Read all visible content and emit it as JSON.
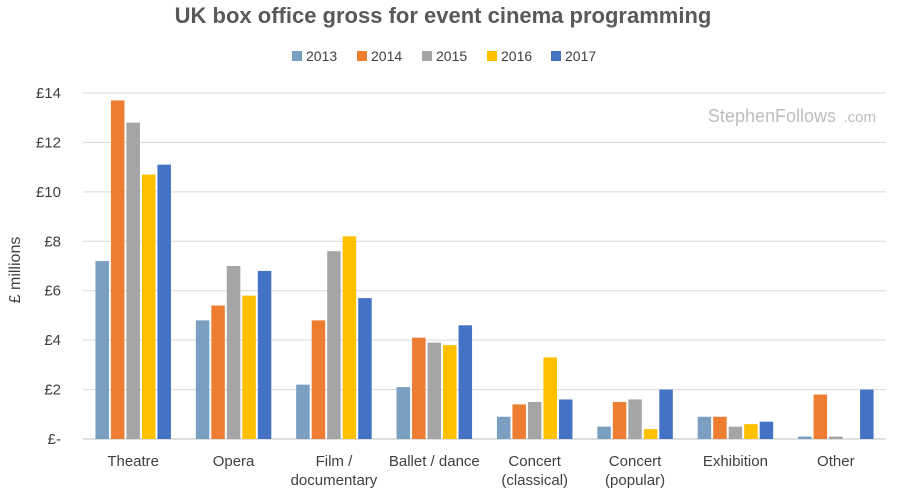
{
  "chart_data": {
    "type": "bar",
    "title": "UK box office gross for event cinema programming",
    "ylabel": "£ millions",
    "xlabel": "",
    "ylim": [
      0,
      14
    ],
    "yticks": [
      {
        "value": 0,
        "label": "£-"
      },
      {
        "value": 2,
        "label": "£2"
      },
      {
        "value": 4,
        "label": "£4"
      },
      {
        "value": 6,
        "label": "£6"
      },
      {
        "value": 8,
        "label": "£8"
      },
      {
        "value": 10,
        "label": "£10"
      },
      {
        "value": 12,
        "label": "£12"
      },
      {
        "value": 14,
        "label": "£14"
      }
    ],
    "grid": true,
    "legend_position": "top",
    "categories": [
      [
        "Theatre"
      ],
      [
        "Opera"
      ],
      [
        "Film /",
        "documentary"
      ],
      [
        "Ballet / dance"
      ],
      [
        "Concert",
        "(classical)"
      ],
      [
        "Concert",
        "(popular)"
      ],
      [
        "Exhibition"
      ],
      [
        "Other"
      ]
    ],
    "series": [
      {
        "name": "2013",
        "color": "#7a9fc1",
        "values": [
          7.2,
          4.8,
          2.2,
          2.1,
          0.9,
          0.5,
          0.9,
          0.1
        ]
      },
      {
        "name": "2014",
        "color": "#ed7d31",
        "values": [
          13.7,
          5.4,
          4.8,
          4.1,
          1.4,
          1.5,
          0.9,
          1.8
        ]
      },
      {
        "name": "2015",
        "color": "#a5a5a5",
        "values": [
          12.8,
          7.0,
          7.6,
          3.9,
          1.5,
          1.6,
          0.5,
          0.1
        ]
      },
      {
        "name": "2016",
        "color": "#ffc000",
        "values": [
          10.7,
          5.8,
          8.2,
          3.8,
          3.3,
          0.4,
          0.6,
          0.0
        ]
      },
      {
        "name": "2017",
        "color": "#4472c4",
        "values": [
          11.1,
          6.8,
          5.7,
          4.6,
          1.6,
          2.0,
          0.7,
          2.0
        ]
      }
    ]
  },
  "watermark": {
    "main": "StephenFollows",
    "suffix": ".com"
  }
}
